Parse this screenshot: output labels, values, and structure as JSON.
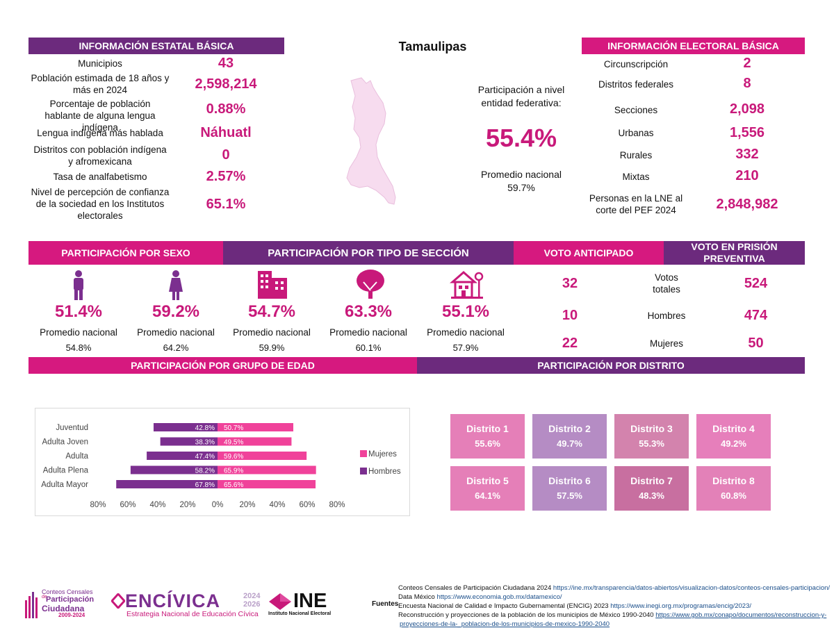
{
  "state_name": "Tamaulipas",
  "colors": {
    "magenta": "#d6197f",
    "purple": "#6c2a7d",
    "value": "#c8197a"
  },
  "estatal": {
    "header": "INFORMACIÓN ESTATAL BÁSICA",
    "rows": [
      {
        "label": "Municipios",
        "value": "43"
      },
      {
        "label": "Población estimada de 18 años y más en 2024",
        "value": "2,598,214"
      },
      {
        "label": "Porcentaje de población hablante de alguna lengua indígena",
        "value": "0.88%"
      },
      {
        "label": "Lengua indígena más hablada",
        "value": "Náhuatl"
      },
      {
        "label": "Distritos con población indígena y afromexicana",
        "value": "0"
      },
      {
        "label": "Tasa de analfabetismo",
        "value": "2.57%"
      },
      {
        "label": "Nivel de percepción de confianza de la sociedad en los Institutos electorales",
        "value": "65.1%"
      }
    ]
  },
  "participacion_entidad": {
    "label": "Participación a nivel entidad federativa:",
    "value": "55.4%",
    "promedio_label": "Promedio nacional",
    "promedio_value": "59.7%"
  },
  "electoral": {
    "header": "INFORMACIÓN ELECTORAL BÁSICA",
    "rows": [
      {
        "label": "Circunscripción",
        "value": "2"
      },
      {
        "label": "Distritos federales",
        "value": "8"
      },
      {
        "label": "Secciones",
        "value": "2,098"
      },
      {
        "label": "Urbanas",
        "value": "1,556"
      },
      {
        "label": "Rurales",
        "value": "332"
      },
      {
        "label": "Mixtas",
        "value": "210"
      },
      {
        "label": "Personas en la LNE al corte del PEF 2024",
        "value": "2,848,982"
      }
    ]
  },
  "section_headers": {
    "sexo": "PARTICIPACIÓN POR SEXO",
    "tipo": "PARTICIPACIÓN POR TIPO DE SECCIÓN",
    "anticipado": "VOTO ANTICIPADO",
    "prision": "VOTO EN PRISIÓN PREVENTIVA",
    "edad": "PARTICIPACIÓN POR GRUPO DE EDAD",
    "distrito": "PARTICIPACIÓN POR DISTRITO"
  },
  "participacion_items": [
    {
      "icon": "man-icon",
      "value": "51.4%",
      "promedio_label": "Promedio nacional",
      "promedio_value": "54.8%"
    },
    {
      "icon": "woman-icon",
      "value": "59.2%",
      "promedio_label": "Promedio nacional",
      "promedio_value": "64.2%"
    },
    {
      "icon": "buildings-icon",
      "value": "54.7%",
      "promedio_label": "Promedio nacional",
      "promedio_value": "59.9%"
    },
    {
      "icon": "tree-icon",
      "value": "63.3%",
      "promedio_label": "Promedio nacional",
      "promedio_value": "60.1%"
    },
    {
      "icon": "house-tree-icon",
      "value": "55.1%",
      "promedio_label": "Promedio nacional",
      "promedio_value": "57.9%"
    }
  ],
  "voto_anticipado": [
    "32",
    "10",
    "22"
  ],
  "voto_prision": [
    {
      "label": "Votos totales",
      "value": "524"
    },
    {
      "label": "Hombres",
      "value": "474"
    },
    {
      "label": "Mujeres",
      "value": "50"
    }
  ],
  "chart_data": {
    "type": "bar",
    "orientation": "horizontal",
    "categories": [
      "Juventud",
      "Adulta Joven",
      "Adulta",
      "Adulta Plena",
      "Adulta Mayor"
    ],
    "series": [
      {
        "name": "Mujeres",
        "color": "#f0429a",
        "values": [
          50.7,
          49.5,
          59.6,
          65.9,
          65.6
        ],
        "labels": [
          "50.7%",
          "49.5%",
          "59.6%",
          "65.9%",
          "65.6%"
        ]
      },
      {
        "name": "Hombres",
        "color": "#7b2f8f",
        "values": [
          42.8,
          38.3,
          47.4,
          58.2,
          67.8
        ],
        "labels": [
          "42.8%",
          "38.3%",
          "47.4%",
          "58.2%",
          "67.8%"
        ]
      }
    ],
    "xlim": [
      -80,
      80
    ],
    "ticks": [
      "80%",
      "60%",
      "40%",
      "20%",
      "0%",
      "20%",
      "40%",
      "60%",
      "80%"
    ],
    "legend": "right"
  },
  "distritos": [
    {
      "name": "Distrito 1",
      "value": "55.6%",
      "color": "#e57fb8"
    },
    {
      "name": "Distrito 2",
      "value": "49.7%",
      "color": "#b58cc4"
    },
    {
      "name": "Distrito 3",
      "value": "55.3%",
      "color": "#d383ad"
    },
    {
      "name": "Distrito 4",
      "value": "49.2%",
      "color": "#e67fbb"
    },
    {
      "name": "Distrito 5",
      "value": "64.1%",
      "color": "#e57fb8"
    },
    {
      "name": "Distrito 6",
      "value": "57.5%",
      "color": "#b58cc4"
    },
    {
      "name": "Distrito 7",
      "value": "48.3%",
      "color": "#c86fa0"
    },
    {
      "name": "Distrito 8",
      "value": "60.8%",
      "color": "#e381b8"
    }
  ],
  "logos": {
    "conteos": [
      "Conteos Censales",
      "de",
      "Participación",
      "Ciudadana",
      "2009-2024"
    ],
    "encivica": "ENCÍVICA",
    "encivica_years": [
      "2024",
      "2026"
    ],
    "encivica_sub": "Estrategia Nacional de Educación Cívica",
    "ine": "INE",
    "ine_sub": "Instituto Nacional Electoral"
  },
  "fuentes": {
    "label": "Fuentes",
    "lines": [
      {
        "text": "Conteos Censales de Participación Ciudadana 2024",
        "url": "https://ine.mx/transparencia/datos-abiertos/visualizacion-datos/conteos-censales-participacion/"
      },
      {
        "text": "Data México",
        "url": "https://www.economia.gob.mx/datamexico/"
      },
      {
        "text": "Encuesta Nacional de Calidad e Impacto Gubernamental (ENCIG) 2023",
        "url": "https://www.inegi.org.mx/programas/encig/2023/"
      },
      {
        "text": "Reconstrucción y proyecciones de la población de los municipios de México 1990-2040",
        "url": "https://www.gob.mx/conapo/documentos/reconstruccion-y-"
      },
      {
        "text": "",
        "url": "proyecciones-de-la-_poblacion-de-los-municipios-de-mexico-1990-2040"
      }
    ]
  }
}
